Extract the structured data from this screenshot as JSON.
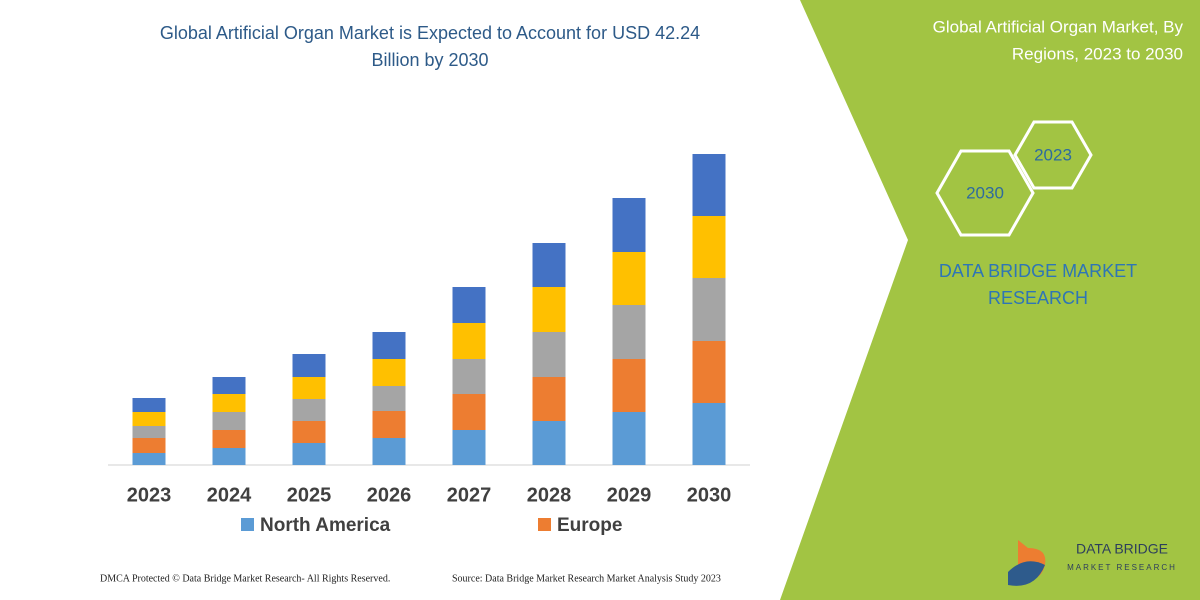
{
  "chart_data": {
    "type": "stacked-bar",
    "title": "Global Artificial Organ Market is Expected to Account for USD 42.24 Billion by 2030",
    "categories": [
      "2023",
      "2024",
      "2025",
      "2026",
      "2027",
      "2028",
      "2029",
      "2030"
    ],
    "series": [
      {
        "name": "North America",
        "color": "#5b9bd5",
        "values": [
          12,
          17,
          22,
          27,
          35,
          44,
          53,
          62
        ]
      },
      {
        "name": "Europe",
        "color": "#ed7d31",
        "values": [
          15,
          18,
          22,
          27,
          36,
          44,
          53,
          62
        ]
      },
      {
        "color": "#a5a5a5",
        "values": [
          12,
          18,
          22,
          25,
          35,
          45,
          54,
          63
        ]
      },
      {
        "color": "#ffc000",
        "values": [
          14,
          18,
          22,
          27,
          36,
          45,
          53,
          62
        ]
      },
      {
        "color": "#4472c4",
        "values": [
          14,
          17,
          23,
          27,
          36,
          44,
          54,
          62
        ]
      }
    ],
    "ylim": [
      0,
      320
    ]
  },
  "panel": {
    "title": "Global Artificial Organ Market, By Regions, 2023 to 2030",
    "hexagons": [
      "2023",
      "2030"
    ],
    "brand": "DATA BRIDGE MARKET RESEARCH"
  },
  "logo": {
    "name": "DATA BRIDGE",
    "tagline": "MARKET RESEARCH"
  },
  "footer": {
    "left": "DMCA Protected © Data Bridge Market Research- All Rights Reserved.",
    "right": "Source: Data Bridge Market Research Market Analysis Study 2023"
  }
}
